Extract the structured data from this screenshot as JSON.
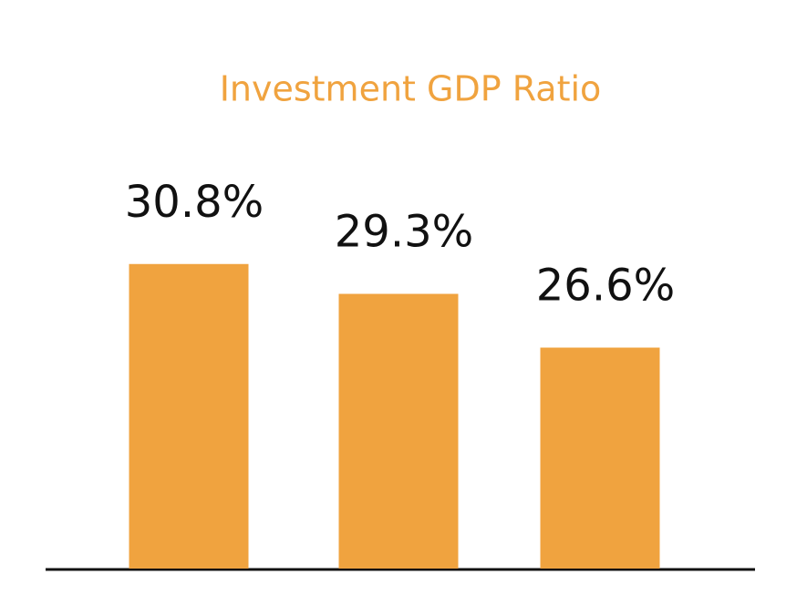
{
  "chart_data": {
    "type": "bar",
    "title": "Investment GDP Ratio",
    "values": [
      30.8,
      29.3,
      26.6
    ],
    "value_labels": [
      "30.8%",
      "29.3%",
      "26.6%"
    ],
    "color": "#f0a33f",
    "ylim": [
      15.5,
      35
    ]
  }
}
